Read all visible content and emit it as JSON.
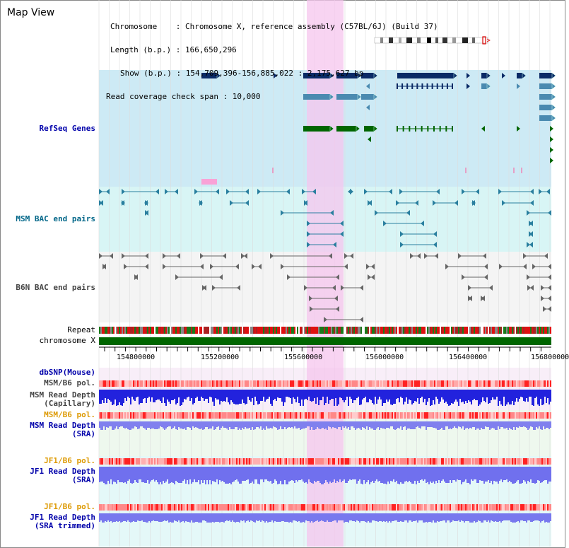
{
  "title": "Map View",
  "info": {
    "chromosome": "Chromosome    : Chromosome X, reference assembly (C57BL/6J) (Build 37)",
    "length": "Length (b.p.) : 166,650,296",
    "show": "Show (b.p.) : 154,709,396-156,885,022 : 2,175,627 bp",
    "coverage": "Read coverage check span : 10,000"
  },
  "tracks": {
    "refseq": "RefSeq Genes",
    "msm_bac": "MSM BAC end pairs",
    "b6n_bac": "B6N BAC end pairs",
    "repeat": "Repeat",
    "chromosome": "chromosome X",
    "dbsnp": "dbSNP(Mouse)",
    "msm_b6_pol_1": "MSM/B6 pol.",
    "msm_read_depth_cap_1": "MSM Read Depth",
    "msm_read_depth_cap_2": "(Capillary)",
    "msm_b6_pol_2": "MSM/B6 pol.",
    "msm_read_depth_sra_1": "MSM Read Depth",
    "msm_read_depth_sra_2": "(SRA)",
    "jf1_b6_pol_1": "JF1/B6 pol.",
    "jf1_read_depth_1": "JF1 Read Depth",
    "jf1_read_depth_2": "(SRA)",
    "jf1_b6_pol_2": "JF1/B6 pol.",
    "jf1_read_depth_trim_1": "JF1 Read Depth",
    "jf1_read_depth_trim_2": "(SRA trimmed)"
  },
  "axis_ticks": [
    "154800000",
    "155200000",
    "155600000",
    "156000000",
    "156400000",
    "156800000"
  ],
  "colors": {
    "label_blue": "#0000aa",
    "label_teal": "#006688",
    "label_gray": "#444444",
    "label_orange": "#dd9900",
    "highlight": "#f5c6ee",
    "refseq_bg": "#cdeaf5",
    "msm_bac_bg": "#d8f5f5",
    "gene_dark": "#0a2a66",
    "gene_mid": "#4a8ab0",
    "gene_green": "#006600"
  }
}
